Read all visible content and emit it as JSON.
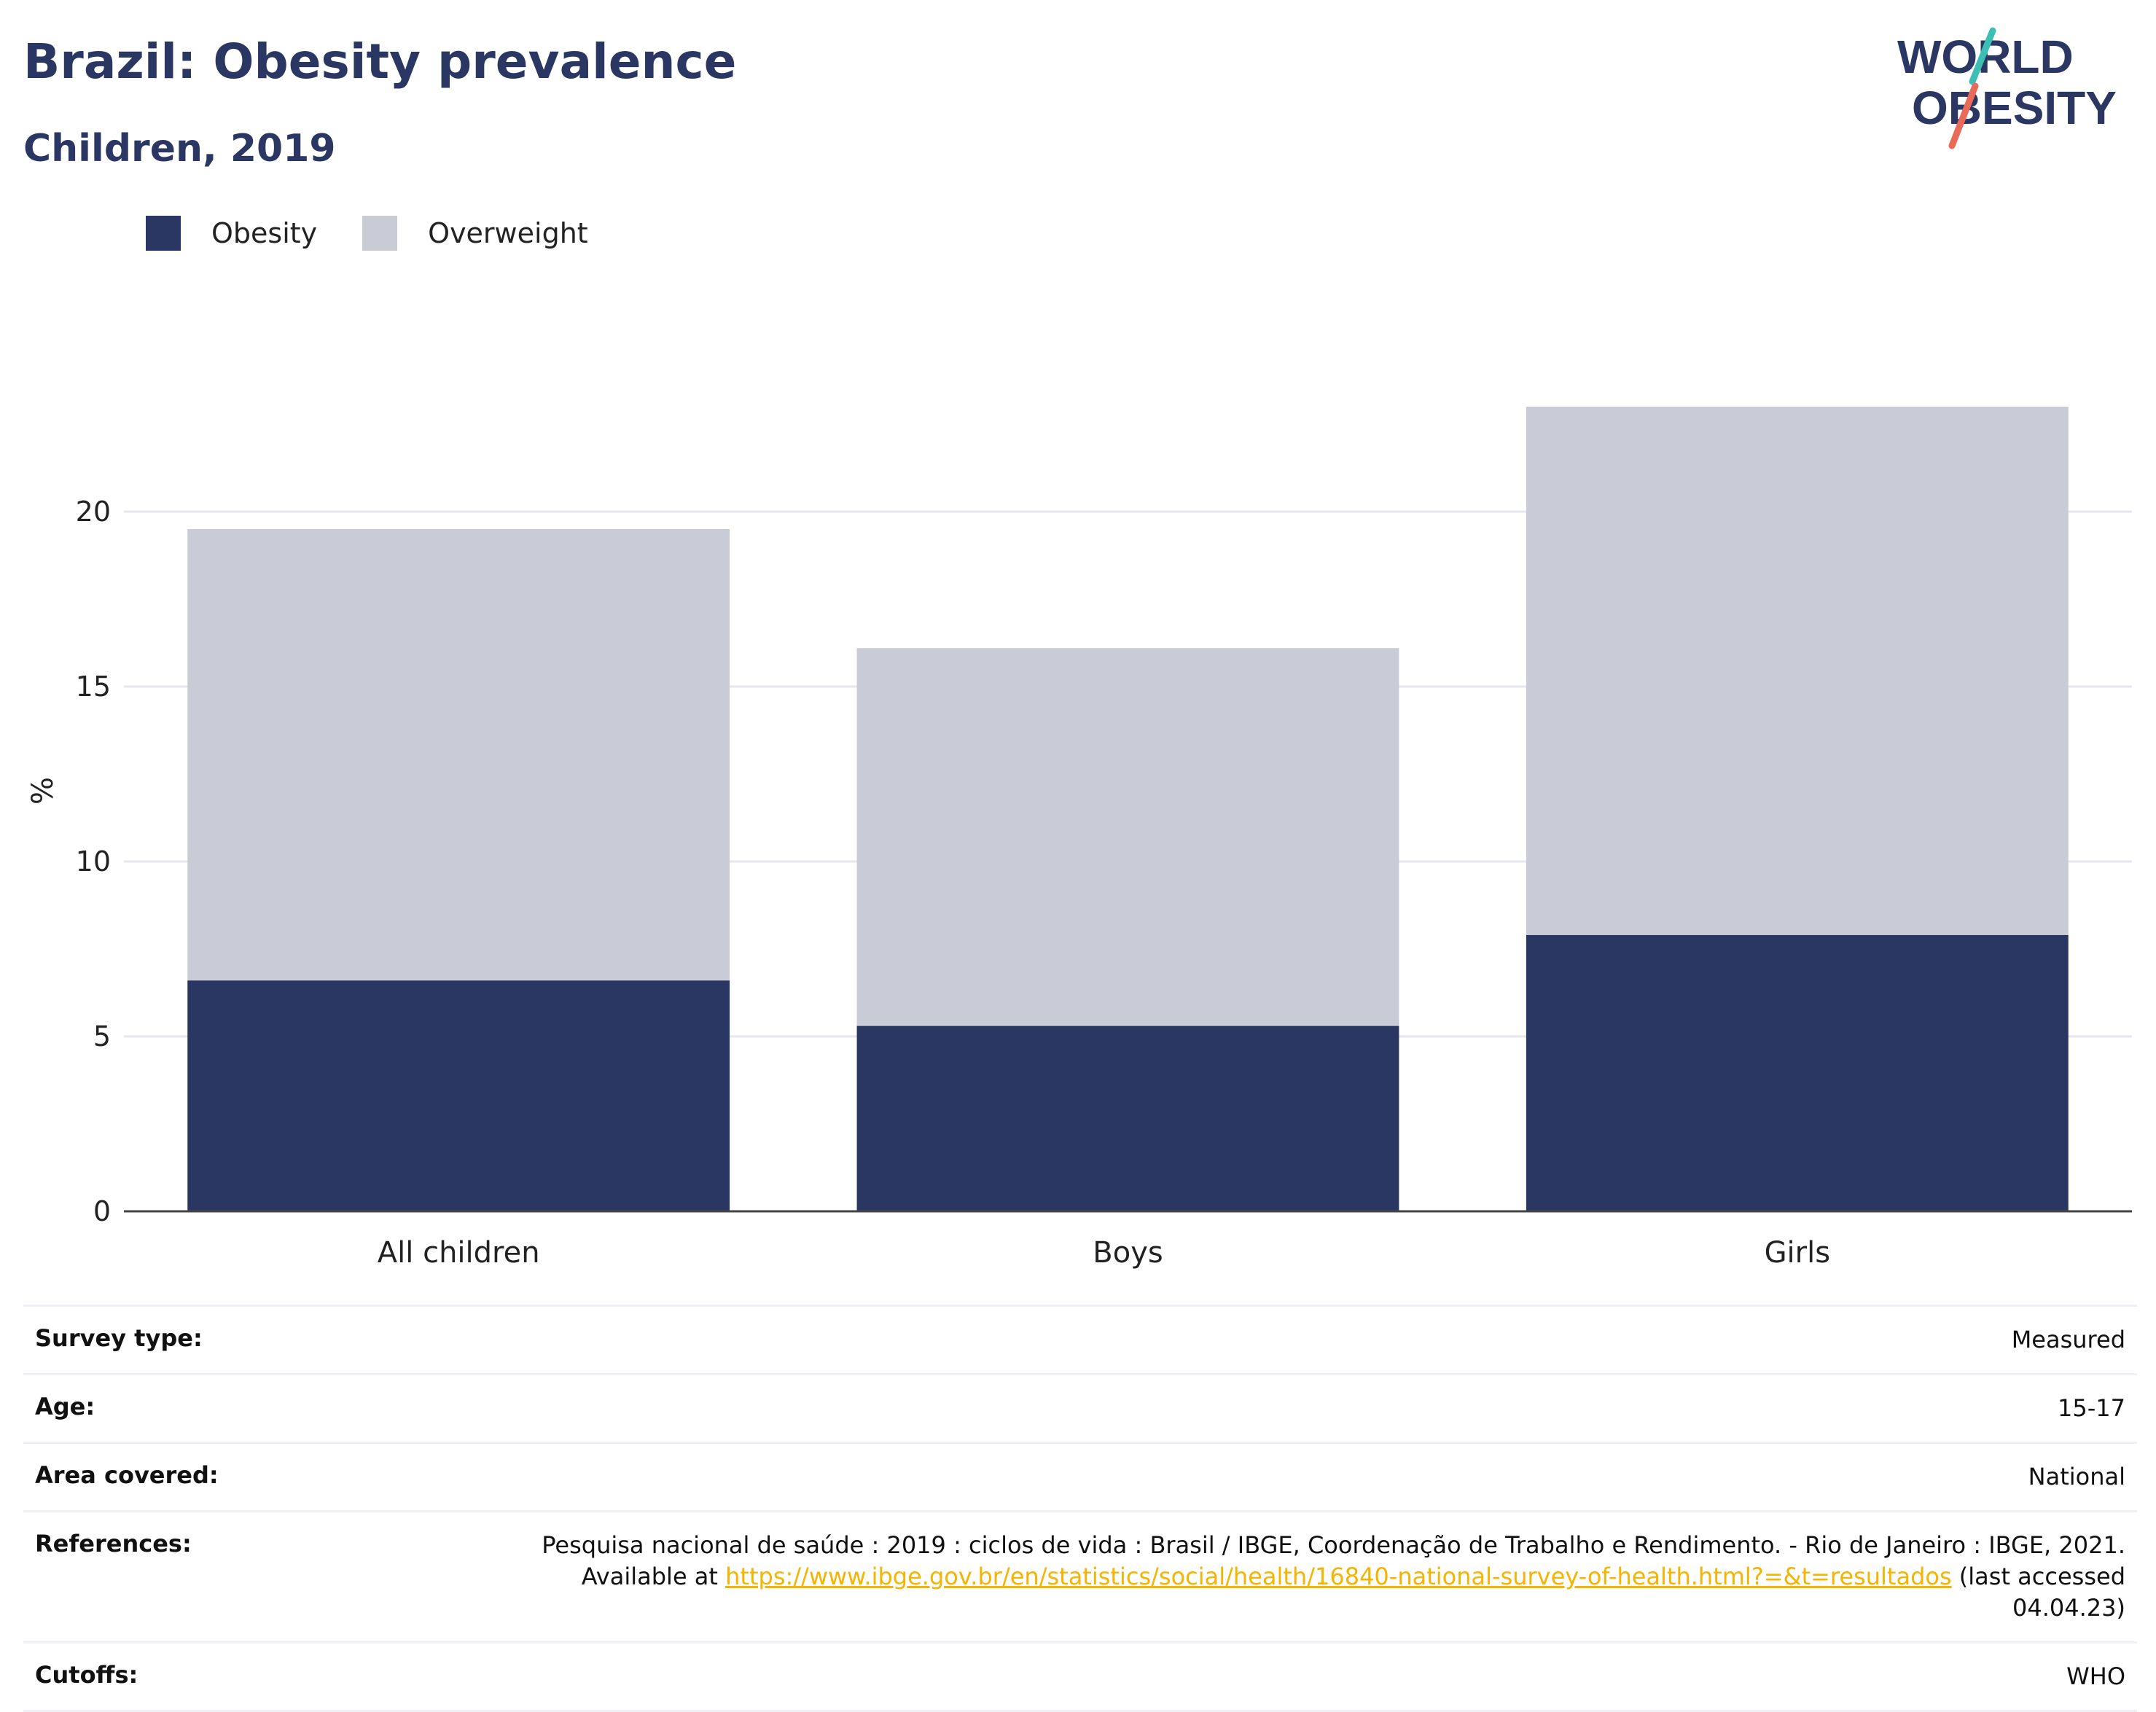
{
  "header": {
    "title": "Brazil: Obesity prevalence",
    "subtitle": "Children, 2019"
  },
  "logo": {
    "line1": "WORLD",
    "line2": "OBESITY",
    "accent_teal": "#3bbfb5",
    "accent_coral": "#ea6a5a",
    "text_color": "#2b3763"
  },
  "legend": {
    "obesity_label": "Obesity",
    "overweight_label": "Overweight"
  },
  "colors": {
    "obesity": "#2b3763",
    "overweight": "#c9cbd6",
    "grid": "#e6e7ec",
    "axis": "#444444"
  },
  "chart_data": {
    "type": "bar",
    "stacked": true,
    "categories": [
      "All children",
      "Boys",
      "Girls"
    ],
    "series": [
      {
        "name": "Obesity",
        "values": [
          6.6,
          5.3,
          7.9
        ]
      },
      {
        "name": "Overweight",
        "values": [
          12.9,
          10.8,
          15.1
        ]
      }
    ],
    "ylabel": "%",
    "xlabel": "",
    "ylim": [
      0,
      24
    ],
    "yticks": [
      0,
      5,
      10,
      15,
      20
    ],
    "grid": true,
    "legend_position": "top-left"
  },
  "info": {
    "survey_type_label": "Survey type:",
    "survey_type_value": "Measured",
    "age_label": "Age:",
    "age_value": "15-17",
    "area_label": "Area covered:",
    "area_value": "National",
    "references_label": "References:",
    "references_text_1": "Pesquisa nacional de saúde : 2019 : ciclos de vida : Brasil / IBGE, Coordenação de Trabalho e Rendimento. - Rio de Janeiro : IBGE, 2021.",
    "references_text_2": "Available at ",
    "references_link": "https://www.ibge.gov.br/en/statistics/social/health/16840-national-survey-of-health.html?=&t=resultados",
    "references_text_3": " (last accessed",
    "references_text_4": "04.04.23)",
    "cutoffs_label": "Cutoffs:",
    "cutoffs_value": "WHO"
  }
}
